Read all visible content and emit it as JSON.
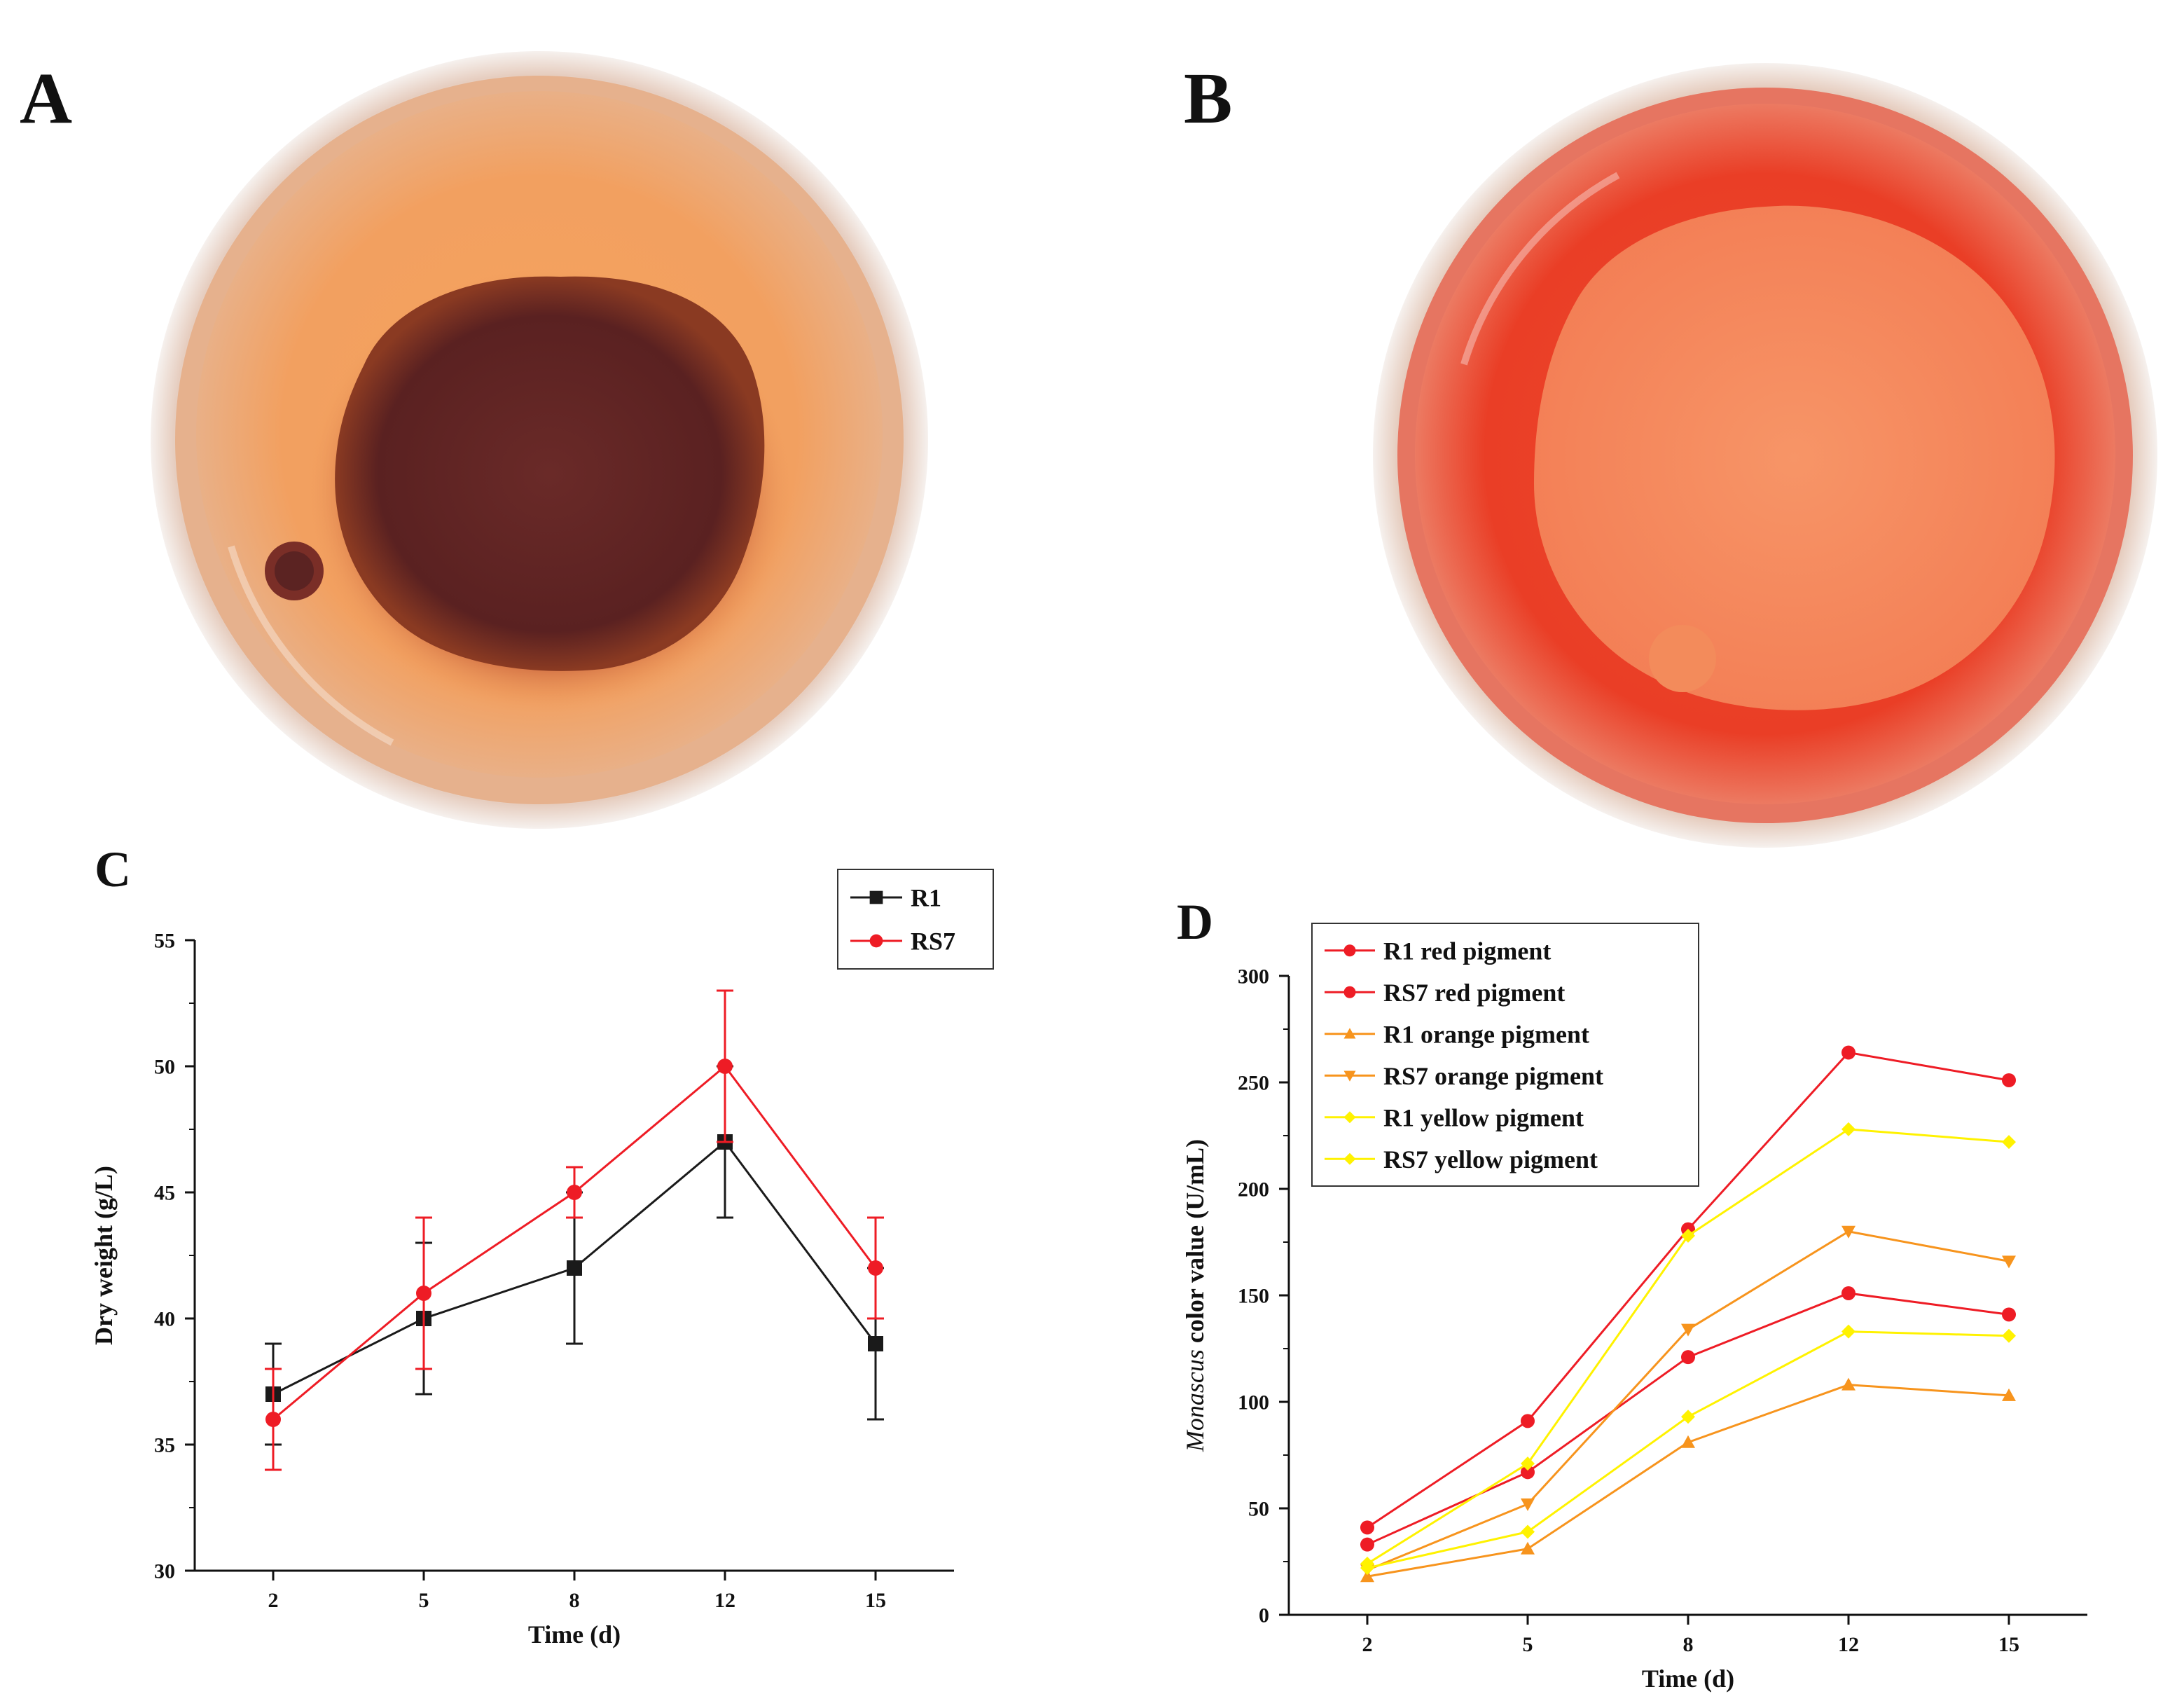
{
  "panels": {
    "A": {
      "letter": "A",
      "photo": "petri-dish-dark-colony"
    },
    "B": {
      "letter": "B",
      "photo": "petri-dish-orange-colony"
    },
    "C": {
      "letter": "C"
    },
    "D": {
      "letter": "D"
    }
  },
  "colors": {
    "black": "#1a1a1a",
    "red": "#ee1c25",
    "orange": "#f7941d",
    "yellow": "#fff200",
    "gridaxis": "#111111"
  },
  "chart_data": [
    {
      "id": "C",
      "type": "line",
      "title": "",
      "xlabel": "Time (d)",
      "ylabel": "Dry weight (g/L)",
      "categories": [
        "2",
        "5",
        "8",
        "12",
        "15"
      ],
      "ylim": [
        30,
        55
      ],
      "yticks": [
        30,
        35,
        40,
        45,
        50,
        55
      ],
      "legend_position": "top-right",
      "series": [
        {
          "name": "R1",
          "color": "#1a1a1a",
          "marker": "square",
          "values": [
            37,
            40,
            42,
            47,
            39
          ],
          "err": [
            2,
            3,
            3,
            3,
            3
          ]
        },
        {
          "name": "RS7",
          "color": "#ee1c25",
          "marker": "circle",
          "values": [
            36,
            41,
            45,
            50,
            42
          ],
          "err": [
            2,
            3,
            1,
            3,
            2
          ]
        }
      ]
    },
    {
      "id": "D",
      "type": "line",
      "title": "",
      "xlabel": "Time (d)",
      "ylabel_italic": "Monascus",
      "ylabel_rest": " color value (U/mL)",
      "categories": [
        "2",
        "5",
        "8",
        "12",
        "15"
      ],
      "ylim": [
        0,
        300
      ],
      "yticks": [
        0,
        50,
        100,
        150,
        200,
        250,
        300
      ],
      "legend_position": "top-left",
      "series": [
        {
          "name": "R1 red pigment",
          "color": "#ee1c25",
          "marker": "circle",
          "values": [
            41,
            91,
            181,
            264,
            251
          ]
        },
        {
          "name": "RS7 red pigment",
          "color": "#ee1c25",
          "marker": "circle",
          "values": [
            33,
            67,
            121,
            151,
            141
          ]
        },
        {
          "name": "R1 orange pigment",
          "color": "#f7941d",
          "marker": "triangle-up",
          "values": [
            18,
            31,
            81,
            108,
            103
          ]
        },
        {
          "name": "RS7 orange pigment",
          "color": "#f7941d",
          "marker": "triangle-down",
          "values": [
            21,
            52,
            134,
            180,
            166
          ]
        },
        {
          "name": "R1 yellow pigment",
          "color": "#fff200",
          "marker": "diamond",
          "values": [
            24,
            71,
            178,
            228,
            222
          ]
        },
        {
          "name": "RS7 yellow pigment",
          "color": "#fff200",
          "marker": "diamond",
          "values": [
            22,
            39,
            93,
            133,
            131
          ]
        }
      ]
    }
  ]
}
